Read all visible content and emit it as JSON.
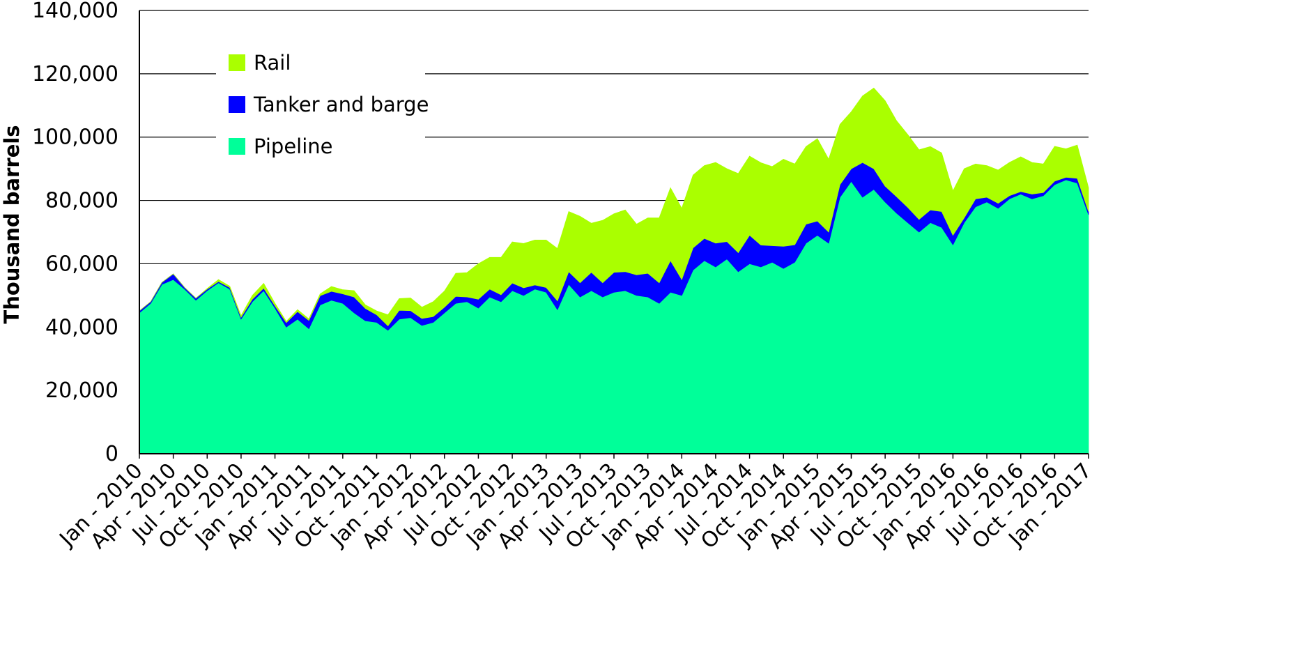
{
  "chart_data": {
    "type": "area",
    "stacked": true,
    "title": "",
    "xlabel": "",
    "ylabel": "Thousand barrels",
    "ylim": [
      0,
      140000
    ],
    "yticks": [
      0,
      20000,
      40000,
      60000,
      80000,
      100000,
      120000,
      140000
    ],
    "ytick_labels": [
      "0",
      "20,000",
      "40,000",
      "60,000",
      "80,000",
      "100,000",
      "120,000",
      "140,000"
    ],
    "xtick_labels": [
      "Jan - 2010",
      "Apr - 2010",
      "Jul - 2010",
      "Oct - 2010",
      "Jan - 2011",
      "Apr - 2011",
      "Jul - 2011",
      "Oct - 2011",
      "Jan - 2012",
      "Apr - 2012",
      "Jul - 2012",
      "Oct - 2012",
      "Jan - 2013",
      "Apr - 2013",
      "Jul - 2013",
      "Oct - 2013",
      "Jan - 2014",
      "Apr - 2014",
      "Jul - 2014",
      "Oct - 2014",
      "Jan - 2015",
      "Apr - 2015",
      "Jul - 2015",
      "Oct - 2015",
      "Jan - 2016",
      "Apr - 2016",
      "Jul - 2016",
      "Oct - 2016",
      "Jan - 2017"
    ],
    "x_start": "Jan - 2010",
    "x_end": "Feb - 2017",
    "grid": "horizontal",
    "legend_position": "top-left",
    "series": [
      {
        "name": "Pipeline",
        "color": "#00ff99",
        "values": [
          44500,
          47500,
          53500,
          55000,
          52000,
          48500,
          51500,
          54000,
          52000,
          42500,
          48000,
          51500,
          46000,
          40000,
          42500,
          39500,
          47000,
          48500,
          47500,
          44500,
          42000,
          41500,
          39000,
          42500,
          43000,
          40500,
          41500,
          44500,
          47500,
          48000,
          46000,
          49500,
          48000,
          51500,
          50000,
          52000,
          51000,
          45500,
          53500,
          49500,
          51500,
          49500,
          51000,
          51500,
          50000,
          49500,
          47500,
          51000,
          50000,
          58000,
          61000,
          59000,
          61500,
          57500,
          60000,
          59000,
          60500,
          58500,
          60500,
          66500,
          69000,
          66500,
          81000,
          86000,
          81000,
          83500,
          79500,
          76000,
          73000,
          70000,
          73000,
          71500,
          66000,
          73000,
          78000,
          79500,
          77500,
          80500,
          82000,
          80500,
          81500,
          85000,
          86500,
          85500,
          75500
        ]
      },
      {
        "name": "Tanker and barge",
        "color": "#0000ff",
        "values": [
          600,
          500,
          600,
          1800,
          500,
          600,
          500,
          400,
          500,
          600,
          800,
          800,
          700,
          1400,
          2400,
          2600,
          2900,
          2800,
          3000,
          5000,
          3900,
          2400,
          1400,
          2800,
          2200,
          2200,
          1800,
          1800,
          2200,
          1500,
          2800,
          2500,
          2200,
          2400,
          2400,
          1300,
          1500,
          2800,
          4000,
          4500,
          5800,
          4500,
          6300,
          6000,
          6500,
          7500,
          6500,
          10000,
          5000,
          7000,
          7000,
          7500,
          5500,
          6000,
          9000,
          6900,
          5200,
          7000,
          5500,
          6000,
          4500,
          3500,
          4000,
          4000,
          11000,
          6500,
          5000,
          5200,
          4800,
          4000,
          4000,
          5000,
          3000,
          1500,
          2500,
          1500,
          1600,
          1000,
          800,
          1500,
          1000,
          1100,
          800,
          1500,
          1000
        ]
      },
      {
        "name": "Rail",
        "color": "#aaff00",
        "values": [
          0,
          0,
          0,
          0,
          0,
          0,
          200,
          600,
          400,
          500,
          1200,
          1500,
          800,
          400,
          600,
          500,
          600,
          1500,
          1300,
          2000,
          1100,
          1200,
          3500,
          3700,
          4000,
          3600,
          4700,
          5100,
          7300,
          7700,
          11200,
          10000,
          11800,
          13000,
          14000,
          14200,
          15000,
          16500,
          19000,
          21000,
          15500,
          19700,
          18500,
          19500,
          16000,
          17500,
          20500,
          23000,
          22500,
          23000,
          23000,
          25500,
          23000,
          25000,
          25000,
          26000,
          25000,
          27500,
          25500,
          24500,
          26000,
          23000,
          19000,
          18000,
          21000,
          25500,
          27000,
          24000,
          23000,
          22000,
          20000,
          18500,
          14000,
          15500,
          11000,
          10000,
          10500,
          10500,
          11000,
          10000,
          9000,
          11000,
          9000,
          10500,
          7500
        ]
      }
    ]
  },
  "legend": [
    {
      "label": "Rail",
      "color": "#aaff00"
    },
    {
      "label": "Tanker and barge",
      "color": "#0000ff"
    },
    {
      "label": "Pipeline",
      "color": "#00ff99"
    }
  ]
}
